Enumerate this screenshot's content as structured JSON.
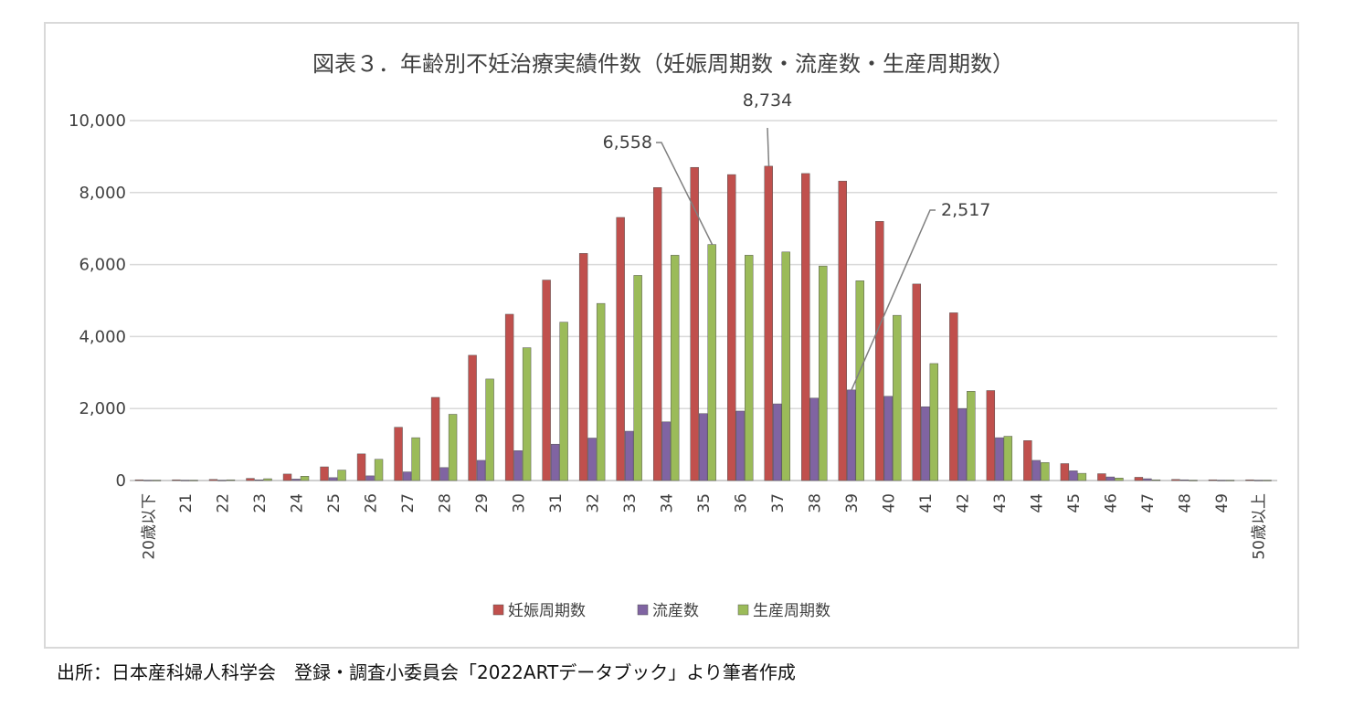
{
  "source_note": "出所：日本産科婦人科学会　登録・調査小委員会「2022ARTデータブック」より筆者作成",
  "chart_data": {
    "type": "bar",
    "title": "図表３．年齢別不妊治療実績件数（妊娠周期数・流産数・生産周期数）",
    "xlabel": "",
    "ylabel": "",
    "ylim": [
      0,
      10000
    ],
    "yticks": [
      "0",
      "2,000",
      "4,000",
      "6,000",
      "8,000",
      "10,000"
    ],
    "ytick_values": [
      0,
      2000,
      4000,
      6000,
      8000,
      10000
    ],
    "grid": true,
    "legend_position": "bottom",
    "categories": [
      "20歳以下",
      "21",
      "22",
      "23",
      "24",
      "25",
      "26",
      "27",
      "28",
      "29",
      "30",
      "31",
      "32",
      "33",
      "34",
      "35",
      "36",
      "37",
      "38",
      "39",
      "40",
      "41",
      "42",
      "43",
      "44",
      "45",
      "46",
      "47",
      "48",
      "49",
      "50歳以上"
    ],
    "series": [
      {
        "name": "妊娠周期数",
        "color": "#c0504d",
        "values": [
          20,
          20,
          30,
          60,
          180,
          380,
          740,
          1480,
          2310,
          3480,
          4620,
          5570,
          6310,
          7310,
          8140,
          8700,
          8500,
          8734,
          8530,
          8320,
          7200,
          5460,
          4660,
          2500,
          1110,
          470,
          190,
          90,
          30,
          20,
          20
        ]
      },
      {
        "name": "流産数",
        "color": "#8064a2",
        "values": [
          10,
          10,
          10,
          20,
          40,
          80,
          130,
          240,
          360,
          560,
          830,
          1010,
          1180,
          1370,
          1630,
          1860,
          1930,
          2130,
          2290,
          2517,
          2340,
          2050,
          2000,
          1190,
          560,
          270,
          100,
          50,
          20,
          10,
          10
        ]
      },
      {
        "name": "生産周期数",
        "color": "#9bbb59",
        "values": [
          10,
          10,
          20,
          50,
          120,
          290,
          590,
          1190,
          1840,
          2820,
          3690,
          4400,
          4920,
          5700,
          6260,
          6558,
          6260,
          6350,
          5960,
          5550,
          4590,
          3250,
          2480,
          1230,
          500,
          200,
          70,
          20,
          10,
          10,
          10
        ]
      }
    ],
    "annotations": [
      {
        "text": "6,558",
        "series": 2,
        "index": 15
      },
      {
        "text": "8,734",
        "series": 0,
        "index": 17
      },
      {
        "text": "2,517",
        "series": 1,
        "index": 19
      }
    ]
  }
}
